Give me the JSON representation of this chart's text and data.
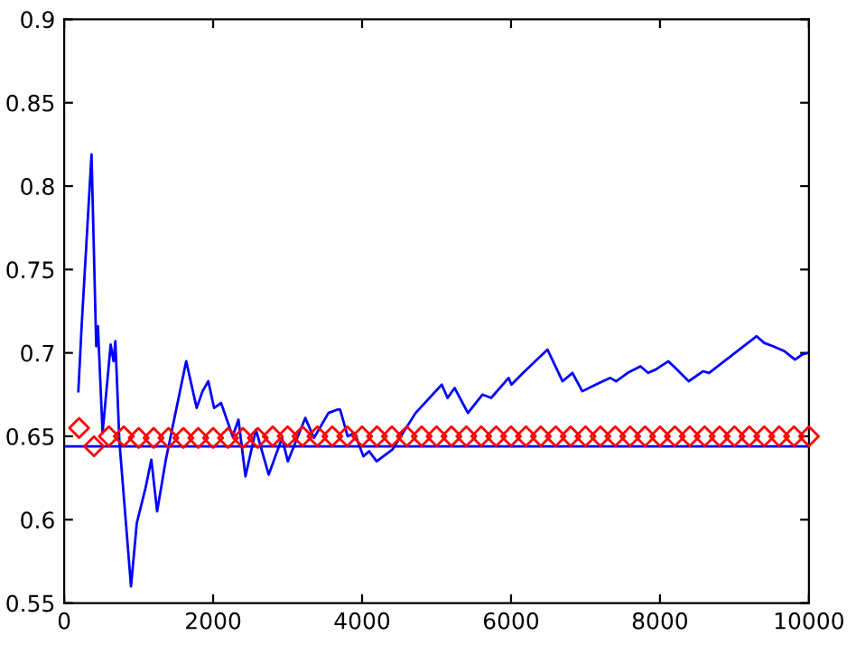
{
  "chart_data": {
    "type": "line",
    "xlim": [
      0,
      10000
    ],
    "xticks": [
      0,
      2000,
      4000,
      6000,
      8000,
      10000
    ],
    "ylim": [
      0.55,
      0.9
    ],
    "yticks": [
      0.55,
      {
        "value": 0.6,
        "label": "0.6"
      },
      0.65,
      {
        "value": 0.7,
        "label": "0.7"
      },
      0.75,
      {
        "value": 0.8,
        "label": "0.8"
      },
      0.85,
      {
        "value": 0.9,
        "label": "0.9"
      }
    ],
    "grid": false,
    "series": [
      {
        "color": "#0000ff",
        "marker": "none",
        "line_style": "solid",
        "x": [
          190,
          234,
          367,
          430,
          453,
          515,
          624,
          663,
          687,
          741,
          897,
          975,
          1092,
          1170,
          1248,
          1365,
          1638,
          1779,
          1857,
          1935,
          2013,
          2106,
          2262,
          2340,
          2434,
          2574,
          2746,
          2925,
          3003,
          3237,
          3354,
          3549,
          3666,
          3705,
          3806,
          3900,
          4017,
          4095,
          4196,
          4407,
          4719,
          5070,
          5148,
          5242,
          5421,
          5616,
          5733,
          5967,
          6006,
          6162,
          6489,
          6692,
          6825,
          6957,
          7137,
          7332,
          7410,
          7566,
          7738,
          7840,
          7941,
          8113,
          8206,
          8386,
          8581,
          8659,
          9298,
          9400,
          9517,
          9673,
          9813,
          9907,
          9985
        ],
        "values": [
          0.677,
          0.716,
          0.819,
          0.704,
          0.716,
          0.652,
          0.705,
          0.695,
          0.707,
          0.647,
          0.56,
          0.598,
          0.619,
          0.636,
          0.605,
          0.636,
          0.695,
          0.667,
          0.677,
          0.683,
          0.667,
          0.67,
          0.65,
          0.66,
          0.626,
          0.654,
          0.627,
          0.649,
          0.635,
          0.661,
          0.649,
          0.664,
          0.666,
          0.666,
          0.65,
          0.652,
          0.638,
          0.641,
          0.635,
          0.642,
          0.664,
          0.681,
          0.673,
          0.679,
          0.664,
          0.675,
          0.673,
          0.685,
          0.681,
          0.688,
          0.702,
          0.683,
          0.688,
          0.677,
          0.681,
          0.685,
          0.683,
          0.688,
          0.692,
          0.688,
          0.69,
          0.695,
          0.691,
          0.683,
          0.689,
          0.688,
          0.71,
          0.706,
          0.704,
          0.701,
          0.696,
          0.699,
          0.7
        ]
      },
      {
        "type": "scatter",
        "color": "#ff0000",
        "marker": "diamond",
        "x": [
          200,
          400,
          600,
          800,
          1000,
          1200,
          1400,
          1600,
          1800,
          2000,
          2200,
          2400,
          2600,
          2800,
          3000,
          3200,
          3400,
          3600,
          3800,
          4000,
          4200,
          4400,
          4600,
          4800,
          5000,
          5200,
          5400,
          5600,
          5800,
          6000,
          6200,
          6400,
          6600,
          6800,
          7000,
          7200,
          7400,
          7600,
          7800,
          8000,
          8200,
          8400,
          8600,
          8800,
          9000,
          9200,
          9400,
          9600,
          9800,
          10000
        ],
        "values": [
          0.655,
          0.644,
          0.65,
          0.65,
          0.649,
          0.649,
          0.649,
          0.649,
          0.649,
          0.649,
          0.649,
          0.649,
          0.649,
          0.65,
          0.65,
          0.65,
          0.65,
          0.65,
          0.65,
          0.65,
          0.65,
          0.65,
          0.65,
          0.65,
          0.65,
          0.65,
          0.65,
          0.65,
          0.65,
          0.65,
          0.65,
          0.65,
          0.65,
          0.65,
          0.65,
          0.65,
          0.65,
          0.65,
          0.65,
          0.65,
          0.65,
          0.65,
          0.65,
          0.65,
          0.65,
          0.65,
          0.65,
          0.65,
          0.65,
          0.65
        ]
      }
    ],
    "ref_lines": [
      {
        "axis": "y",
        "value": 0.644,
        "color": "#0000ff",
        "line_style": "solid"
      }
    ]
  }
}
